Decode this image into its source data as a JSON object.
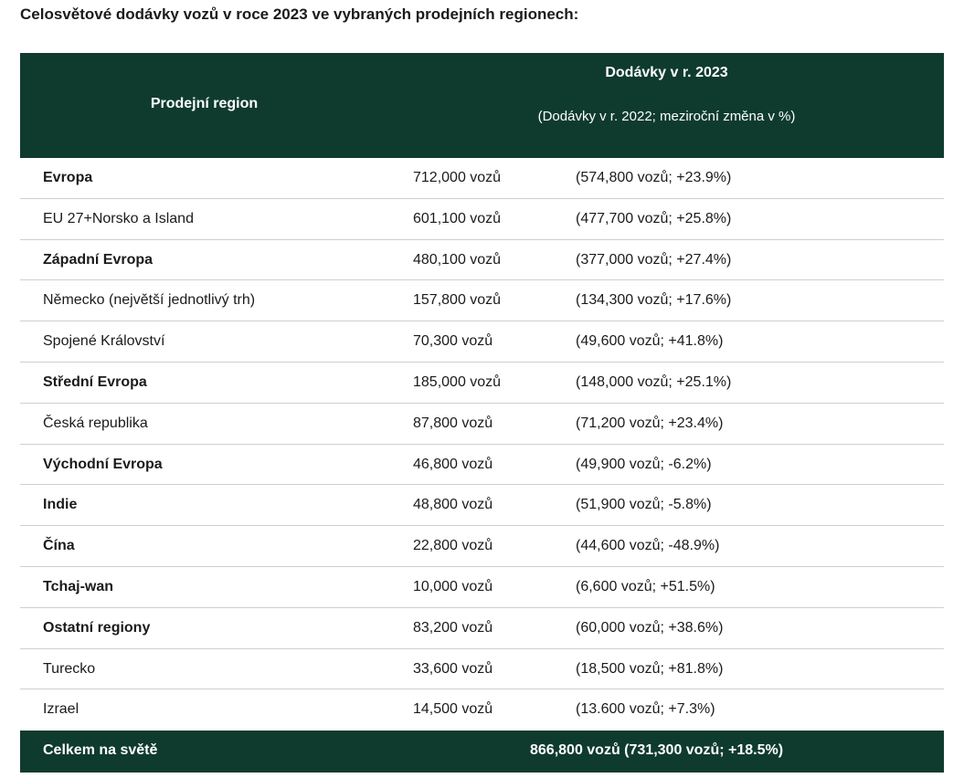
{
  "title": "Celosvětové dodávky vozů v roce 2023 ve vybraných prodejních regionech:",
  "table": {
    "header": {
      "region": "Prodejní region",
      "deliveries": "Dodávky v r. 2023",
      "deliveries_sub": "(Dodávky v r. 2022; meziroční změna v %)"
    },
    "rows": [
      {
        "region": "Evropa",
        "bold": true,
        "deliveries_2023": "712,000 vozů",
        "deliveries_2022": "(574,800 vozů; +23.9%)"
      },
      {
        "region": "EU 27+Norsko a Island",
        "bold": false,
        "deliveries_2023": "601,100 vozů",
        "deliveries_2022": "(477,700 vozů; +25.8%)"
      },
      {
        "region": "Západní Evropa",
        "bold": true,
        "deliveries_2023": "480,100 vozů",
        "deliveries_2022": "(377,000 vozů; +27.4%)"
      },
      {
        "region": "Německo (největší jednotlivý trh)",
        "bold": false,
        "deliveries_2023": "157,800 vozů",
        "deliveries_2022": "(134,300 vozů; +17.6%)"
      },
      {
        "region": "Spojené Království",
        "bold": false,
        "deliveries_2023": "70,300 vozů",
        "deliveries_2022": "(49,600 vozů; +41.8%)"
      },
      {
        "region": "Střední Evropa",
        "bold": true,
        "deliveries_2023": "185,000 vozů",
        "deliveries_2022": "(148,000 vozů; +25.1%)"
      },
      {
        "region": "Česká republika",
        "bold": false,
        "deliveries_2023": "87,800 vozů",
        "deliveries_2022": "(71,200 vozů; +23.4%)"
      },
      {
        "region": "Východní Evropa",
        "bold": true,
        "deliveries_2023": "46,800 vozů",
        "deliveries_2022": "(49,900 vozů; -6.2%)"
      },
      {
        "region": "Indie",
        "bold": true,
        "deliveries_2023": "48,800 vozů",
        "deliveries_2022": "(51,900 vozů; -5.8%)"
      },
      {
        "region": "Čína",
        "bold": true,
        "deliveries_2023": "22,800 vozů",
        "deliveries_2022": "(44,600 vozů; -48.9%)"
      },
      {
        "region": "Tchaj-wan",
        "bold": true,
        "deliveries_2023": "10,000 vozů",
        "deliveries_2022": "(6,600 vozů; +51.5%)"
      },
      {
        "region": "Ostatní regiony",
        "bold": true,
        "deliveries_2023": "83,200 vozů",
        "deliveries_2022": "(60,000 vozů; +38.6%)"
      },
      {
        "region": "Turecko",
        "bold": false,
        "deliveries_2023": "33,600 vozů",
        "deliveries_2022": "(18,500 vozů; +81.8%)"
      },
      {
        "region": "Izrael",
        "bold": false,
        "deliveries_2023": "14,500 vozů",
        "deliveries_2022": "(13.600 vozů; +7.3%)"
      }
    ],
    "total": {
      "label": "Celkem na světě",
      "value": "866,800 vozů (731,300 vozů; +18.5%)"
    }
  },
  "colors": {
    "header_bg": "#0f3b2f",
    "header_text": "#ffffff",
    "row_divider": "#cfcfcf"
  }
}
